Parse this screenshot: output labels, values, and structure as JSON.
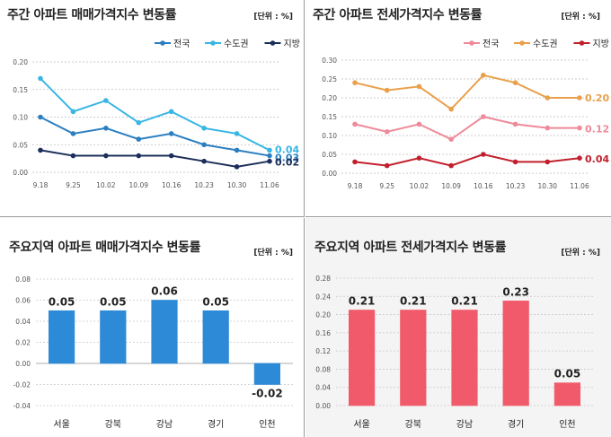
{
  "unit_label": "[단위 : %]",
  "chart_data": [
    {
      "type": "line",
      "title": "주간 아파트 매매가격지수 변동률",
      "x": [
        "9.18",
        "9.25",
        "10.02",
        "10.09",
        "10.16",
        "10.23",
        "10.30",
        "11.06"
      ],
      "ylim": [
        0,
        0.2
      ],
      "yticks": [
        "0.00",
        "0.05",
        "0.10",
        "0.15",
        "0.20"
      ],
      "series": [
        {
          "name": "전국",
          "color": "#2b7fc1",
          "values": [
            0.1,
            0.07,
            0.08,
            0.06,
            0.07,
            0.05,
            0.04,
            0.03
          ],
          "end_label": "0.03"
        },
        {
          "name": "수도권",
          "color": "#38b6e4",
          "values": [
            0.17,
            0.11,
            0.13,
            0.09,
            0.11,
            0.08,
            0.07,
            0.04
          ],
          "end_label": "0.04"
        },
        {
          "name": "지방",
          "color": "#1c2f5a",
          "values": [
            0.04,
            0.03,
            0.03,
            0.03,
            0.03,
            0.02,
            0.01,
            0.02
          ],
          "end_label": "0.02"
        }
      ]
    },
    {
      "type": "line",
      "title": "주간 아파트 전세가격지수 변동률",
      "x": [
        "9.18",
        "9.25",
        "10.02",
        "10.09",
        "10.16",
        "10.23",
        "10.30",
        "11.06"
      ],
      "ylim": [
        0,
        0.3
      ],
      "yticks": [
        "0.00",
        "0.05",
        "0.10",
        "0.15",
        "0.20",
        "0.25",
        "0.30"
      ],
      "series": [
        {
          "name": "전국",
          "color": "#ef8a9a",
          "values": [
            0.13,
            0.11,
            0.13,
            0.09,
            0.15,
            0.13,
            0.12,
            0.12
          ],
          "end_label": "0.12"
        },
        {
          "name": "수도권",
          "color": "#e9a04a",
          "values": [
            0.24,
            0.22,
            0.23,
            0.17,
            0.26,
            0.24,
            0.2,
            0.2
          ],
          "end_label": "0.20"
        },
        {
          "name": "지방",
          "color": "#c21f2c",
          "values": [
            0.03,
            0.02,
            0.04,
            0.02,
            0.05,
            0.03,
            0.03,
            0.04
          ],
          "end_label": "0.04"
        }
      ]
    },
    {
      "type": "bar",
      "title": "주요지역 아파트 매매가격지수 변동률",
      "categories": [
        "서울",
        "강북",
        "강남",
        "경기",
        "인천"
      ],
      "values": [
        0.05,
        0.05,
        0.06,
        0.05,
        -0.02
      ],
      "value_labels": [
        "0.05",
        "0.05",
        "0.06",
        "0.05",
        "-0.02"
      ],
      "ylim": [
        -0.04,
        0.08
      ],
      "yticks": [
        "-0.04",
        "-0.02",
        "0.00",
        "0.02",
        "0.04",
        "0.06",
        "0.08"
      ],
      "color": "#2d8ad6"
    },
    {
      "type": "bar",
      "title": "주요지역 아파트 전세가격지수 변동률",
      "categories": [
        "서울",
        "강북",
        "강남",
        "경기",
        "인천"
      ],
      "values": [
        0.21,
        0.21,
        0.21,
        0.23,
        0.05
      ],
      "value_labels": [
        "0.21",
        "0.21",
        "0.21",
        "0.23",
        "0.05"
      ],
      "ylim": [
        0,
        0.28
      ],
      "yticks": [
        "0.00",
        "0.04",
        "0.08",
        "0.12",
        "0.16",
        "0.20",
        "0.24",
        "0.28"
      ],
      "color": "#f15a6a"
    }
  ]
}
